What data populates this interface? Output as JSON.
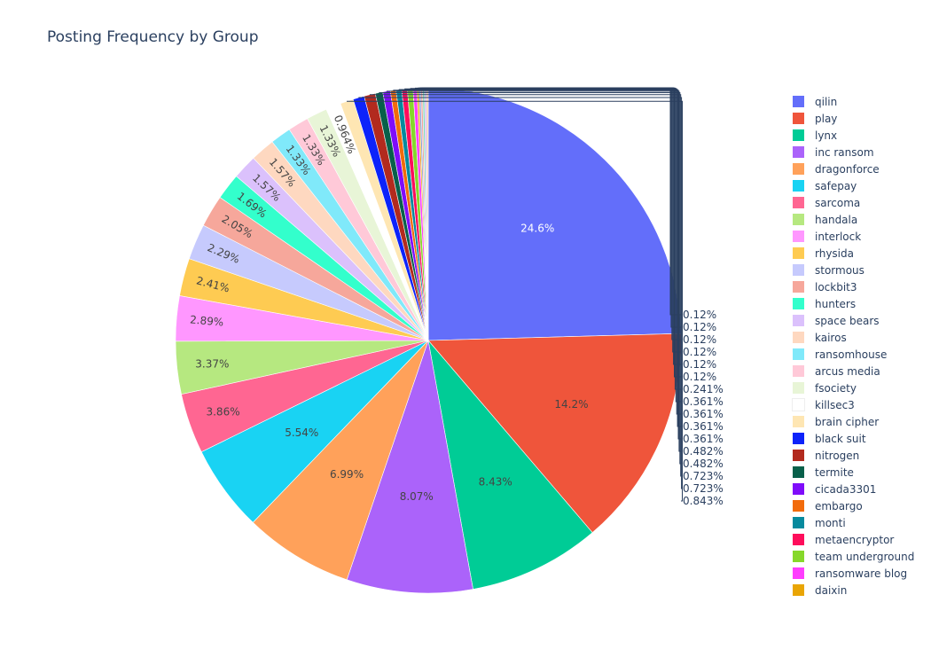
{
  "chart_data": {
    "type": "pie",
    "title": "Posting Frequency by Group",
    "legend_position": "right",
    "slices": [
      {
        "label": "qilin",
        "percent": 24.6,
        "text": "24.6%",
        "color": "#636efa"
      },
      {
        "label": "play",
        "percent": 14.2,
        "text": "14.2%",
        "color": "#ef553b"
      },
      {
        "label": "lynx",
        "percent": 8.43,
        "text": "8.43%",
        "color": "#00cc96"
      },
      {
        "label": "inc ransom",
        "percent": 8.07,
        "text": "8.07%",
        "color": "#ab63fa"
      },
      {
        "label": "dragonforce",
        "percent": 6.99,
        "text": "6.99%",
        "color": "#ffa15a"
      },
      {
        "label": "safepay",
        "percent": 5.54,
        "text": "5.54%",
        "color": "#19d3f3"
      },
      {
        "label": "sarcoma",
        "percent": 3.86,
        "text": "3.86%",
        "color": "#ff6692"
      },
      {
        "label": "handala",
        "percent": 3.37,
        "text": "3.37%",
        "color": "#b6e880"
      },
      {
        "label": "interlock",
        "percent": 2.89,
        "text": "2.89%",
        "color": "#ff97ff"
      },
      {
        "label": "rhysida",
        "percent": 2.41,
        "text": "2.41%",
        "color": "#fecb52"
      },
      {
        "label": "stormous",
        "percent": 2.29,
        "text": "2.29%",
        "color": "#c6cafd"
      },
      {
        "label": "lockbit3",
        "percent": 2.05,
        "text": "2.05%",
        "color": "#f6a79b"
      },
      {
        "label": "hunters",
        "percent": 1.69,
        "text": "1.69%",
        "color": "#33ffcc"
      },
      {
        "label": "space bears",
        "percent": 1.57,
        "text": "1.57%",
        "color": "#dbc1fc"
      },
      {
        "label": "kairos",
        "percent": 1.57,
        "text": "1.57%",
        "color": "#fed8c0"
      },
      {
        "label": "ransomhouse",
        "percent": 1.33,
        "text": "1.33%",
        "color": "#80e9fa"
      },
      {
        "label": "arcus media",
        "percent": 1.33,
        "text": "1.33%",
        "color": "#ffc9d8"
      },
      {
        "label": "fsociety",
        "percent": 1.33,
        "text": "1.33%",
        "color": "#e8f5d7"
      },
      {
        "label": "killsec3",
        "percent": 0.964,
        "text": "0.964%",
        "color": "#ffffff"
      },
      {
        "label": "brain cipher",
        "percent": 0.843,
        "text": "0.843%",
        "color": "#fee6b3"
      },
      {
        "label": "black suit",
        "percent": 0.723,
        "text": "0.723%",
        "color": "#0d23fa"
      },
      {
        "label": "nitrogen",
        "percent": 0.723,
        "text": "0.723%",
        "color": "#b22a1e"
      },
      {
        "label": "termite",
        "percent": 0.482,
        "text": "0.482%",
        "color": "#08604a"
      },
      {
        "label": "cicada3301",
        "percent": 0.482,
        "text": "0.482%",
        "color": "#7f0cfa"
      },
      {
        "label": "embargo",
        "percent": 0.361,
        "text": "0.361%",
        "color": "#f26b0c"
      },
      {
        "label": "monti",
        "percent": 0.361,
        "text": "0.361%",
        "color": "#068a9e"
      },
      {
        "label": "metaencryptor",
        "percent": 0.361,
        "text": "0.361%",
        "color": "#fe0d5b"
      },
      {
        "label": "team underground",
        "percent": 0.361,
        "text": "0.361%",
        "color": "#86d82a"
      },
      {
        "label": "ransomware blog",
        "percent": 0.241,
        "text": "0.241%",
        "color": "#fe3dfe"
      },
      {
        "label": "daixin",
        "percent": 0.12,
        "text": "0.12%",
        "color": "#e9a505"
      },
      {
        "label": "",
        "percent": 0.12,
        "text": "0.12%",
        "color": "#8b9fd8"
      },
      {
        "label": "",
        "percent": 0.12,
        "text": "0.12%",
        "color": "#f0a59c"
      },
      {
        "label": "",
        "percent": 0.12,
        "text": "0.12%",
        "color": "#7fd8b8"
      },
      {
        "label": "",
        "percent": 0.12,
        "text": "0.12%",
        "color": "#c9b3f0"
      },
      {
        "label": "",
        "percent": 0.12,
        "text": "0.12%",
        "color": "#f7c9a5"
      }
    ]
  }
}
